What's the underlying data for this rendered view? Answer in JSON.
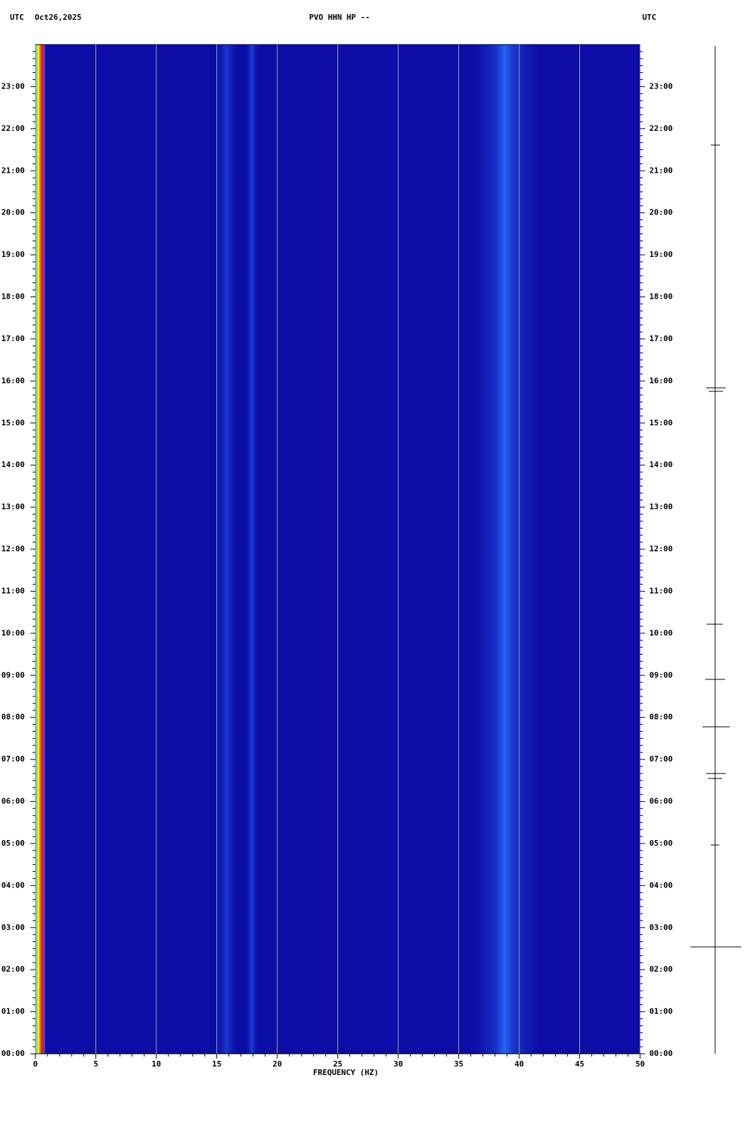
{
  "chart_data": {
    "type": "spectrogram",
    "title": "PVO HHN HP --",
    "left_header": "UTC",
    "date": "Oct26,2025",
    "right_header": "UTC",
    "xlabel": "FREQUENCY (HZ)",
    "xlim": [
      0,
      50
    ],
    "xticks": [
      0,
      5,
      10,
      15,
      20,
      25,
      30,
      35,
      40,
      45,
      50
    ],
    "ylim": [
      0,
      24
    ],
    "yticks": [
      {
        "value": 0,
        "label": "00:00"
      },
      {
        "value": 1,
        "label": "01:00"
      },
      {
        "value": 2,
        "label": "02:00"
      },
      {
        "value": 3,
        "label": "03:00"
      },
      {
        "value": 4,
        "label": "04:00"
      },
      {
        "value": 5,
        "label": "05:00"
      },
      {
        "value": 6,
        "label": "06:00"
      },
      {
        "value": 7,
        "label": "07:00"
      },
      {
        "value": 8,
        "label": "08:00"
      },
      {
        "value": 9,
        "label": "09:00"
      },
      {
        "value": 10,
        "label": "10:00"
      },
      {
        "value": 11,
        "label": "11:00"
      },
      {
        "value": 12,
        "label": "12:00"
      },
      {
        "value": 13,
        "label": "13:00"
      },
      {
        "value": 14,
        "label": "14:00"
      },
      {
        "value": 15,
        "label": "15:00"
      },
      {
        "value": 16,
        "label": "16:00"
      },
      {
        "value": 17,
        "label": "17:00"
      },
      {
        "value": 18,
        "label": "18:00"
      },
      {
        "value": 19,
        "label": "19:00"
      },
      {
        "value": 20,
        "label": "20:00"
      },
      {
        "value": 21,
        "label": "21:00"
      },
      {
        "value": 22,
        "label": "22:00"
      },
      {
        "value": 23,
        "label": "23:00"
      }
    ],
    "grid": true
  }
}
